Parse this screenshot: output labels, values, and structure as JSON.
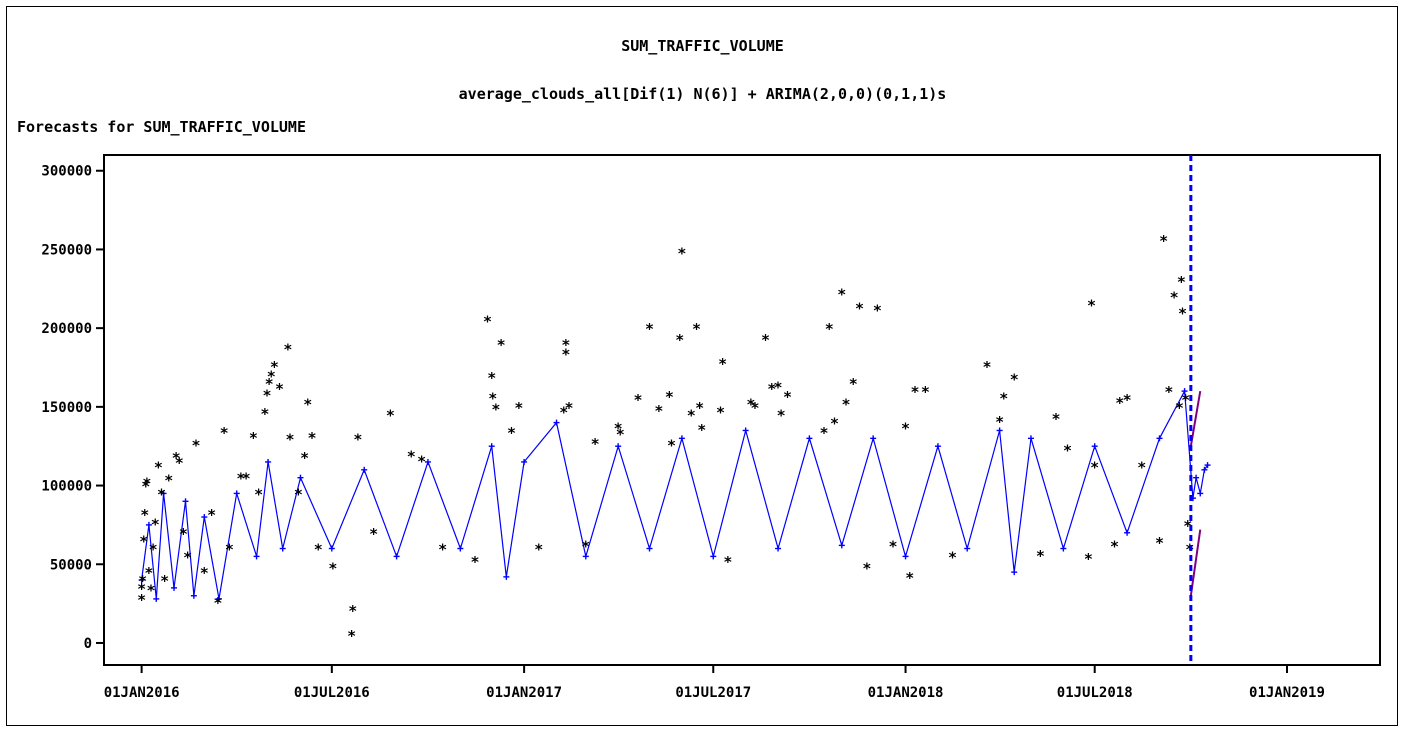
{
  "chart_data": {
    "type": "scatter",
    "title": "SUM_TRAFFIC_VOLUME",
    "subtitle": "average_clouds_all[Dif(1) N(6)] + ARIMA(2,0,0)(0,1,1)s",
    "heading": "Forecasts for SUM_TRAFFIC_VOLUME",
    "xlabel": "",
    "ylabel": "",
    "x_ticks": [
      "01JAN2016",
      "01JUL2016",
      "01JAN2017",
      "01JUL2017",
      "01JAN2018",
      "01JUL2018",
      "01JAN2019"
    ],
    "y_ticks": [
      0,
      50000,
      100000,
      150000,
      200000,
      250000,
      300000
    ],
    "xlim": [
      "2015-11-26",
      "2019-03-31"
    ],
    "ylim": [
      -14000,
      310000
    ],
    "forecast_start": "2018-10-01",
    "grid": false,
    "legend": "none",
    "series": [
      {
        "role": "actual",
        "marker": "*",
        "color": "#000000",
        "points": [
          [
            "2016-01-01",
            28000
          ],
          [
            "2016-01-01",
            35000
          ],
          [
            "2016-01-02",
            40000
          ],
          [
            "2016-01-03",
            65000
          ],
          [
            "2016-01-04",
            82000
          ],
          [
            "2016-01-05",
            100000
          ],
          [
            "2016-01-06",
            102000
          ],
          [
            "2016-01-08",
            45000
          ],
          [
            "2016-01-10",
            34000
          ],
          [
            "2016-01-12",
            60000
          ],
          [
            "2016-01-14",
            76000
          ],
          [
            "2016-01-17",
            112000
          ],
          [
            "2016-01-20",
            95000
          ],
          [
            "2016-01-23",
            40000
          ],
          [
            "2016-01-27",
            104000
          ],
          [
            "2016-02-03",
            118000
          ],
          [
            "2016-02-06",
            115000
          ],
          [
            "2016-02-10",
            70000
          ],
          [
            "2016-02-14",
            55000
          ],
          [
            "2016-02-22",
            126000
          ],
          [
            "2016-03-01",
            45000
          ],
          [
            "2016-03-08",
            82000
          ],
          [
            "2016-03-14",
            26000
          ],
          [
            "2016-03-20",
            134000
          ],
          [
            "2016-03-25",
            60000
          ],
          [
            "2016-04-05",
            105000
          ],
          [
            "2016-04-10",
            105000
          ],
          [
            "2016-04-17",
            131000
          ],
          [
            "2016-04-22",
            95000
          ],
          [
            "2016-04-28",
            146000
          ],
          [
            "2016-04-30",
            158000
          ],
          [
            "2016-05-02",
            165000
          ],
          [
            "2016-05-04",
            170000
          ],
          [
            "2016-05-07",
            176000
          ],
          [
            "2016-05-12",
            162000
          ],
          [
            "2016-05-20",
            187000
          ],
          [
            "2016-05-22",
            130000
          ],
          [
            "2016-05-30",
            95000
          ],
          [
            "2016-06-05",
            118000
          ],
          [
            "2016-06-08",
            152000
          ],
          [
            "2016-06-12",
            131000
          ],
          [
            "2016-06-18",
            60000
          ],
          [
            "2016-07-02",
            48000
          ],
          [
            "2016-07-20",
            5000
          ],
          [
            "2016-07-21",
            21000
          ],
          [
            "2016-07-26",
            130000
          ],
          [
            "2016-08-10",
            70000
          ],
          [
            "2016-08-26",
            145000
          ],
          [
            "2016-09-15",
            119000
          ],
          [
            "2016-09-25",
            116000
          ],
          [
            "2016-10-15",
            60000
          ],
          [
            "2016-11-15",
            52000
          ],
          [
            "2016-11-27",
            205000
          ],
          [
            "2016-12-01",
            169000
          ],
          [
            "2016-12-02",
            156000
          ],
          [
            "2016-12-05",
            149000
          ],
          [
            "2016-12-10",
            190000
          ],
          [
            "2016-12-20",
            134000
          ],
          [
            "2016-12-27",
            150000
          ],
          [
            "2017-01-15",
            60000
          ],
          [
            "2017-02-08",
            147000
          ],
          [
            "2017-02-10",
            190000
          ],
          [
            "2017-02-10",
            184000
          ],
          [
            "2017-02-13",
            150000
          ],
          [
            "2017-03-01",
            62000
          ],
          [
            "2017-03-10",
            127000
          ],
          [
            "2017-04-01",
            137000
          ],
          [
            "2017-04-03",
            133000
          ],
          [
            "2017-04-20",
            155000
          ],
          [
            "2017-05-01",
            200000
          ],
          [
            "2017-05-10",
            148000
          ],
          [
            "2017-05-20",
            157000
          ],
          [
            "2017-05-22",
            126000
          ],
          [
            "2017-05-30",
            193000
          ],
          [
            "2017-06-01",
            248000
          ],
          [
            "2017-06-10",
            145000
          ],
          [
            "2017-06-15",
            200000
          ],
          [
            "2017-06-18",
            150000
          ],
          [
            "2017-06-20",
            136000
          ],
          [
            "2017-07-08",
            147000
          ],
          [
            "2017-07-10",
            178000
          ],
          [
            "2017-07-15",
            52000
          ],
          [
            "2017-08-06",
            152000
          ],
          [
            "2017-08-10",
            150000
          ],
          [
            "2017-08-20",
            193000
          ],
          [
            "2017-08-26",
            162000
          ],
          [
            "2017-09-01",
            163000
          ],
          [
            "2017-09-04",
            145000
          ],
          [
            "2017-09-10",
            157000
          ],
          [
            "2017-10-15",
            134000
          ],
          [
            "2017-10-20",
            200000
          ],
          [
            "2017-10-25",
            140000
          ],
          [
            "2017-11-01",
            222000
          ],
          [
            "2017-11-05",
            152000
          ],
          [
            "2017-11-12",
            165000
          ],
          [
            "2017-11-18",
            213000
          ],
          [
            "2017-11-25",
            48000
          ],
          [
            "2017-12-05",
            212000
          ],
          [
            "2017-12-20",
            62000
          ],
          [
            "2018-01-01",
            137000
          ],
          [
            "2018-01-05",
            42000
          ],
          [
            "2018-01-10",
            160000
          ],
          [
            "2018-01-20",
            160000
          ],
          [
            "2018-02-15",
            55000
          ],
          [
            "2018-03-20",
            176000
          ],
          [
            "2018-04-01",
            141000
          ],
          [
            "2018-04-05",
            156000
          ],
          [
            "2018-04-15",
            168000
          ],
          [
            "2018-05-10",
            56000
          ],
          [
            "2018-05-25",
            143000
          ],
          [
            "2018-06-05",
            123000
          ],
          [
            "2018-06-25",
            54000
          ],
          [
            "2018-06-28",
            215000
          ],
          [
            "2018-07-01",
            112000
          ],
          [
            "2018-07-20",
            62000
          ],
          [
            "2018-07-25",
            153000
          ],
          [
            "2018-08-01",
            155000
          ],
          [
            "2018-08-15",
            112000
          ],
          [
            "2018-09-01",
            64000
          ],
          [
            "2018-09-05",
            256000
          ],
          [
            "2018-09-10",
            160000
          ],
          [
            "2018-09-15",
            220000
          ],
          [
            "2018-09-20",
            150000
          ],
          [
            "2018-09-22",
            230000
          ],
          [
            "2018-09-23",
            210000
          ],
          [
            "2018-09-26",
            155000
          ],
          [
            "2018-09-28",
            75000
          ],
          [
            "2018-09-30",
            60000
          ]
        ]
      },
      {
        "role": "predicted",
        "marker": "+",
        "color": "#0000ff",
        "points": [
          [
            "2016-01-01",
            40000
          ],
          [
            "2016-01-08",
            75000
          ],
          [
            "2016-01-15",
            28000
          ],
          [
            "2016-01-22",
            95000
          ],
          [
            "2016-02-01",
            35000
          ],
          [
            "2016-02-12",
            90000
          ],
          [
            "2016-02-20",
            30000
          ],
          [
            "2016-03-01",
            80000
          ],
          [
            "2016-03-15",
            28000
          ],
          [
            "2016-04-01",
            95000
          ],
          [
            "2016-04-20",
            55000
          ],
          [
            "2016-05-01",
            115000
          ],
          [
            "2016-05-15",
            60000
          ],
          [
            "2016-06-01",
            105000
          ],
          [
            "2016-07-01",
            60000
          ],
          [
            "2016-08-01",
            110000
          ],
          [
            "2016-09-01",
            55000
          ],
          [
            "2016-10-01",
            115000
          ],
          [
            "2016-11-01",
            60000
          ],
          [
            "2016-12-01",
            125000
          ],
          [
            "2016-12-15",
            42000
          ],
          [
            "2017-01-01",
            115000
          ],
          [
            "2017-02-01",
            140000
          ],
          [
            "2017-03-01",
            55000
          ],
          [
            "2017-04-01",
            125000
          ],
          [
            "2017-05-01",
            60000
          ],
          [
            "2017-06-01",
            130000
          ],
          [
            "2017-07-01",
            55000
          ],
          [
            "2017-08-01",
            135000
          ],
          [
            "2017-09-01",
            60000
          ],
          [
            "2017-10-01",
            130000
          ],
          [
            "2017-11-01",
            62000
          ],
          [
            "2017-12-01",
            130000
          ],
          [
            "2018-01-01",
            55000
          ],
          [
            "2018-02-01",
            125000
          ],
          [
            "2018-03-01",
            60000
          ],
          [
            "2018-04-01",
            135000
          ],
          [
            "2018-04-15",
            45000
          ],
          [
            "2018-05-01",
            130000
          ],
          [
            "2018-06-01",
            60000
          ],
          [
            "2018-07-01",
            125000
          ],
          [
            "2018-08-01",
            70000
          ],
          [
            "2018-09-01",
            130000
          ],
          [
            "2018-09-25",
            160000
          ],
          [
            "2018-10-03",
            92000
          ],
          [
            "2018-10-06",
            105000
          ],
          [
            "2018-10-10",
            95000
          ],
          [
            "2018-10-14",
            110000
          ],
          [
            "2018-10-17",
            113000
          ]
        ]
      },
      {
        "role": "confidence_limits",
        "marker": "line",
        "color": "#800080",
        "upper_range": [
          125000,
          160000
        ],
        "lower_range": [
          30000,
          72000
        ],
        "x_range": [
          "2018-10-01",
          "2018-10-10"
        ]
      }
    ]
  }
}
